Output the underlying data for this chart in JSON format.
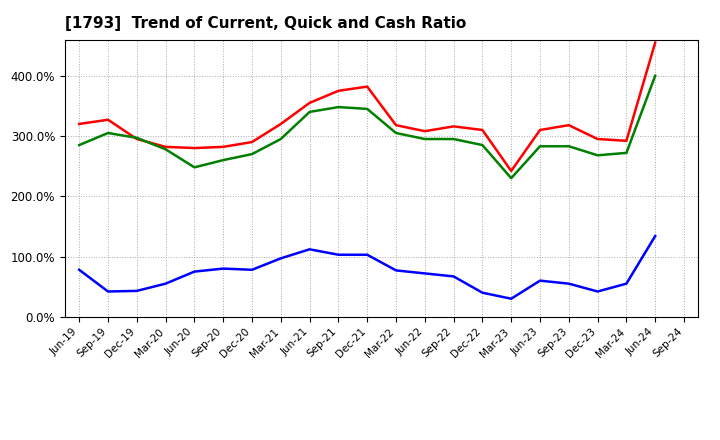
{
  "title": "[1793]  Trend of Current, Quick and Cash Ratio",
  "x_labels": [
    "Jun-19",
    "Sep-19",
    "Dec-19",
    "Mar-20",
    "Jun-20",
    "Sep-20",
    "Dec-20",
    "Mar-21",
    "Jun-21",
    "Sep-21",
    "Dec-21",
    "Mar-22",
    "Jun-22",
    "Sep-22",
    "Dec-22",
    "Mar-23",
    "Jun-23",
    "Sep-23",
    "Dec-23",
    "Mar-24",
    "Jun-24",
    "Sep-24"
  ],
  "current_ratio": [
    320,
    327,
    295,
    282,
    280,
    282,
    290,
    320,
    355,
    375,
    382,
    318,
    308,
    316,
    310,
    242,
    310,
    318,
    295,
    292,
    455,
    null
  ],
  "quick_ratio": [
    285,
    305,
    297,
    278,
    248,
    260,
    270,
    295,
    340,
    348,
    345,
    305,
    295,
    295,
    285,
    230,
    283,
    283,
    268,
    272,
    400,
    null
  ],
  "cash_ratio": [
    78,
    42,
    43,
    55,
    75,
    80,
    78,
    97,
    112,
    103,
    103,
    77,
    72,
    67,
    40,
    30,
    60,
    55,
    42,
    55,
    134,
    null
  ],
  "current_color": "#FF0000",
  "quick_color": "#008000",
  "cash_color": "#0000FF",
  "ylim": [
    0,
    460
  ],
  "yticks": [
    0,
    100,
    200,
    300,
    400
  ],
  "ytick_labels": [
    "0.0%",
    "100.0%",
    "200.0%",
    "300.0%",
    "400.0%"
  ],
  "bg_color": "#FFFFFF",
  "plot_bg_color": "#FFFFFF",
  "grid_color": "#AAAAAA",
  "line_width": 1.8
}
